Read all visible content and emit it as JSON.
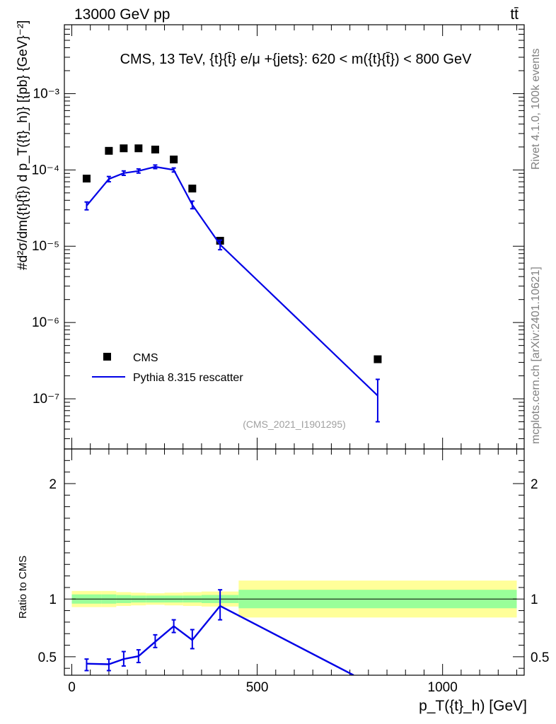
{
  "header": {
    "left": "13000 GeV pp",
    "right": "tt̄"
  },
  "side": {
    "rivet": "Rivet 4.1.0,  100k events",
    "mcplots": "mcplots.cern.ch [arXiv:2401.10621]"
  },
  "chart_data": [
    {
      "type": "scatter",
      "title": "CMS, 13 TeV, {t}{t̄} e/μ +{jets}: 620 < m({t}{t̄}) < 800 GeV",
      "watermark": "(CMS_2021_I1901295)",
      "ylabel": "#d²σ/dm({t}{t̄}) d p_T({t}_h)} [{pb} {GeV}⁻²]",
      "yscale": "log",
      "ylim": [
        2.2e-08,
        0.008
      ],
      "xlim": [
        -20,
        1220
      ],
      "ytick_labels": [
        "10⁻³",
        "10⁻⁴",
        "10⁻⁵",
        "10⁻⁶",
        "10⁻⁷"
      ],
      "legend": [
        "CMS",
        "Pythia 8.315 rescatter"
      ],
      "series": [
        {
          "name": "CMS",
          "style": "markers",
          "x": [
            40,
            100,
            140,
            180,
            225,
            275,
            325,
            400,
            825
          ],
          "values": [
            7.7e-05,
            0.000178,
            0.000192,
            0.000192,
            0.000185,
            0.000137,
            5.7e-05,
            1.18e-05,
            3.3e-07
          ]
        },
        {
          "name": "Pythia 8.315 rescatter",
          "style": "line",
          "color": "#0000e6",
          "x": [
            40,
            100,
            140,
            180,
            225,
            275,
            325,
            400,
            825
          ],
          "values": [
            3.4e-05,
            7.6e-05,
            9.1e-05,
            9.7e-05,
            0.00011,
            0.0001,
            3.5e-05,
            1.05e-05,
            1.1e-07
          ],
          "err_low": [
            3e-05,
            7e-05,
            8.5e-05,
            9.1e-05,
            0.000104,
            9.4e-05,
            3.1e-05,
            9e-06,
            5e-08
          ],
          "err_high": [
            3.8e-05,
            8.2e-05,
            9.7e-05,
            0.000103,
            0.000116,
            0.000106,
            3.9e-05,
            1.2e-05,
            1.8e-07
          ]
        }
      ]
    },
    {
      "type": "line",
      "ylabel": "Ratio to CMS",
      "xlabel": "p_T({t}_h) [GeV]",
      "xlim": [
        -20,
        1220
      ],
      "ylim": [
        0.34,
        2.3
      ],
      "xticks": [
        0,
        500,
        1000
      ],
      "yticks": [
        0.5,
        1,
        2
      ],
      "reference": 1,
      "bands": [
        {
          "x0": 0,
          "x1": 80,
          "inner": [
            0.96,
            1.04
          ],
          "outer": [
            0.93,
            1.07
          ]
        },
        {
          "x0": 80,
          "x1": 120,
          "inner": [
            0.96,
            1.04
          ],
          "outer": [
            0.93,
            1.07
          ]
        },
        {
          "x0": 120,
          "x1": 160,
          "inner": [
            0.965,
            1.035
          ],
          "outer": [
            0.94,
            1.06
          ]
        },
        {
          "x0": 160,
          "x1": 200,
          "inner": [
            0.97,
            1.03
          ],
          "outer": [
            0.945,
            1.055
          ]
        },
        {
          "x0": 200,
          "x1": 250,
          "inner": [
            0.97,
            1.03
          ],
          "outer": [
            0.95,
            1.05
          ]
        },
        {
          "x0": 250,
          "x1": 300,
          "inner": [
            0.97,
            1.03
          ],
          "outer": [
            0.945,
            1.055
          ]
        },
        {
          "x0": 300,
          "x1": 350,
          "inner": [
            0.97,
            1.03
          ],
          "outer": [
            0.94,
            1.06
          ]
        },
        {
          "x0": 350,
          "x1": 450,
          "inner": [
            0.965,
            1.035
          ],
          "outer": [
            0.935,
            1.065
          ]
        },
        {
          "x0": 450,
          "x1": 1200,
          "inner": [
            0.92,
            1.08
          ],
          "outer": [
            0.84,
            1.16
          ]
        }
      ],
      "series": [
        {
          "name": "Pythia 8.315 rescatter",
          "color": "#0000e6",
          "x": [
            40,
            100,
            140,
            180,
            225,
            275,
            325,
            400,
            760
          ],
          "values": [
            0.44,
            0.435,
            0.48,
            0.505,
            0.63,
            0.765,
            0.645,
            0.94,
            0.34
          ],
          "err_low": [
            0.38,
            0.38,
            0.42,
            0.45,
            0.58,
            0.71,
            0.57,
            0.82,
            null
          ],
          "err_high": [
            0.48,
            0.48,
            0.545,
            0.56,
            0.69,
            0.82,
            0.735,
            1.08,
            null
          ]
        }
      ]
    }
  ]
}
